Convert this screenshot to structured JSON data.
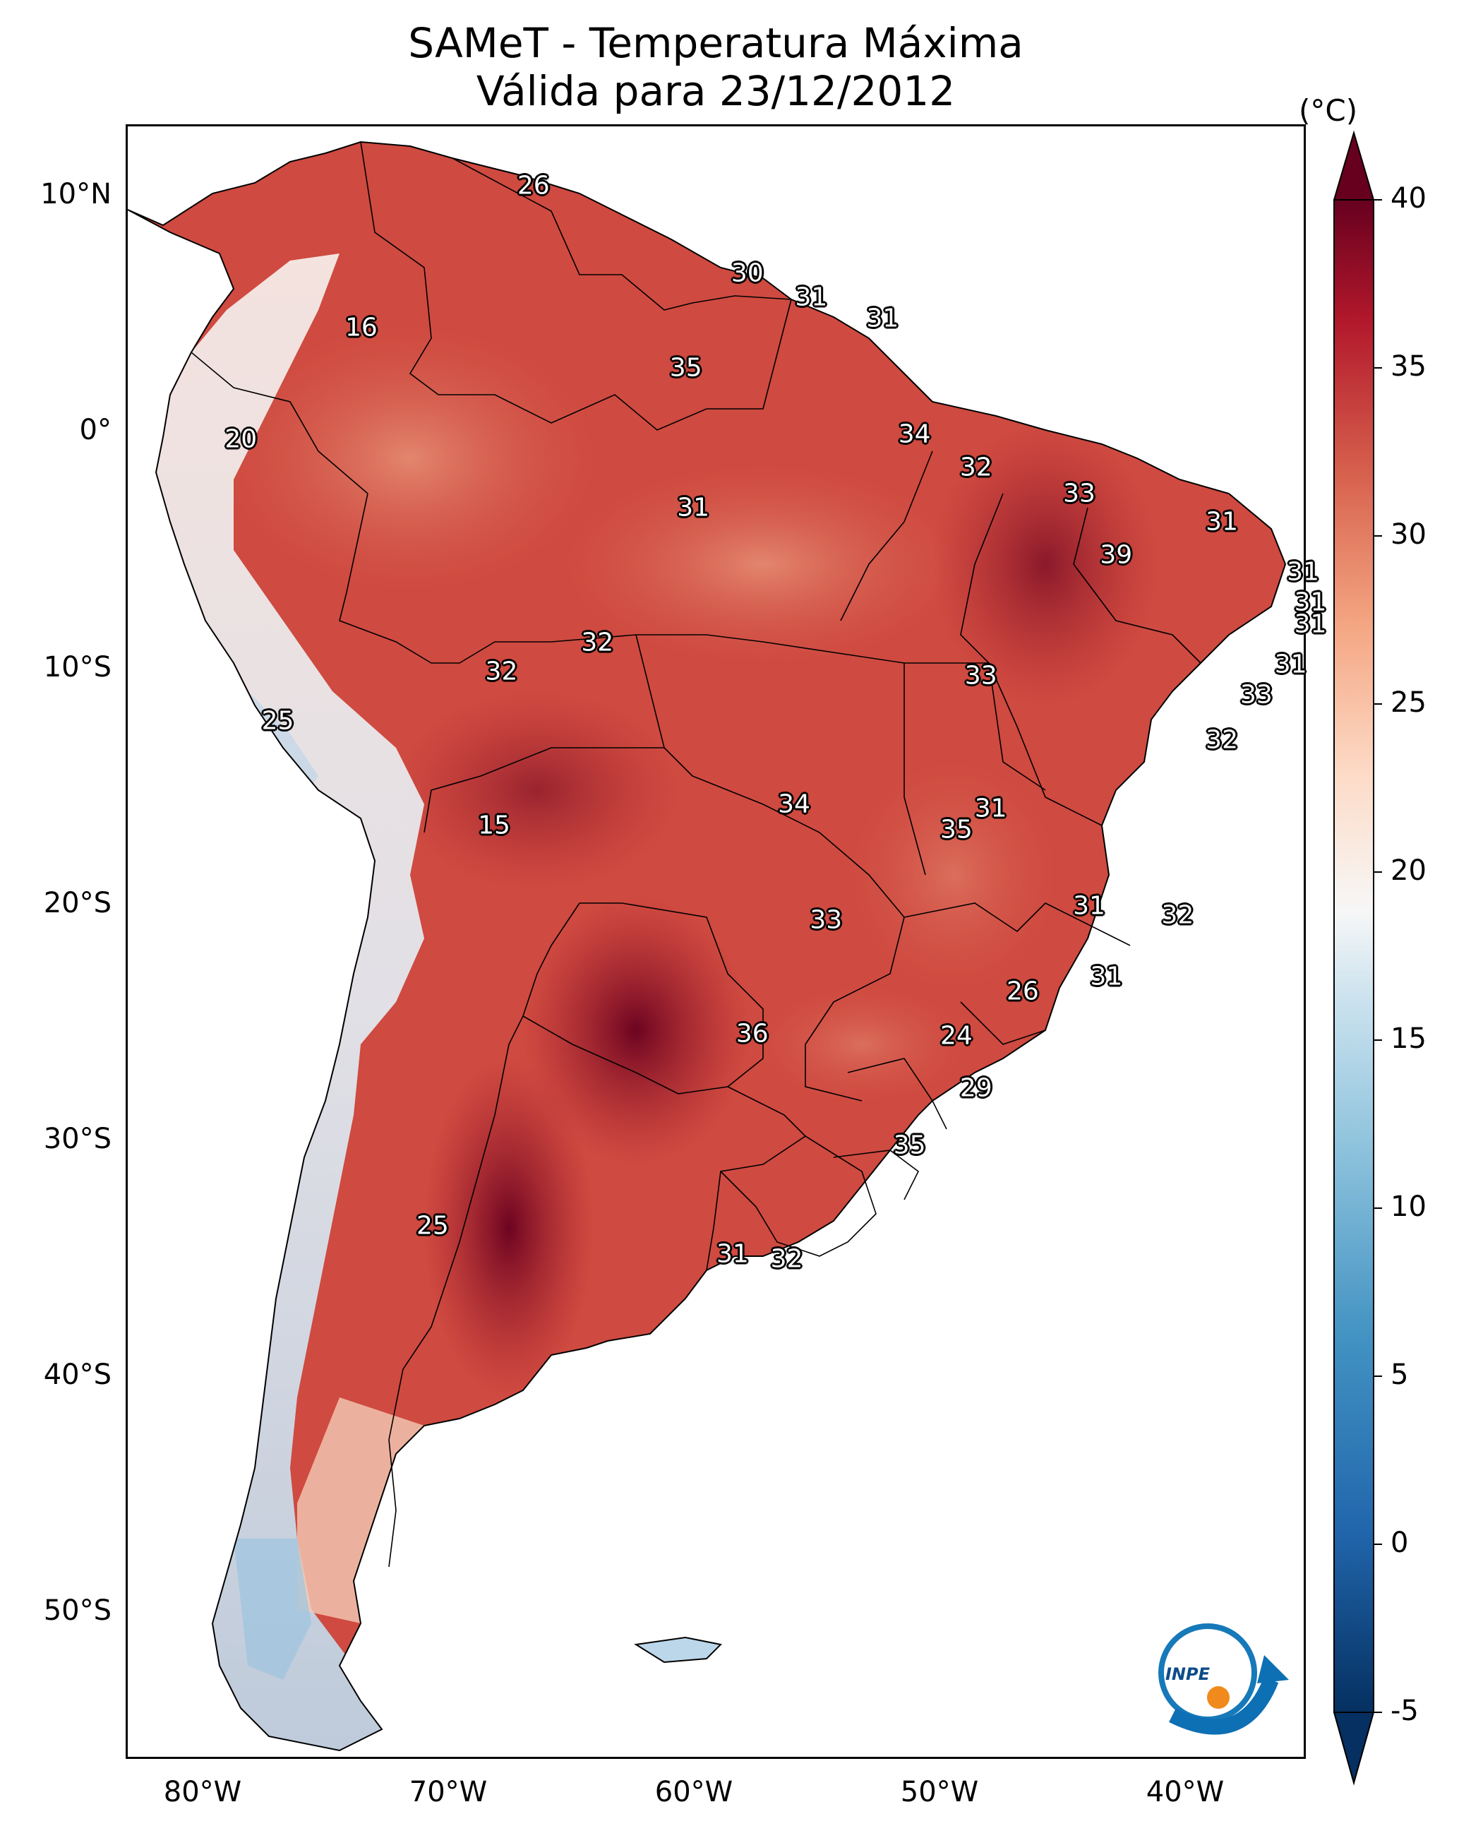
{
  "title_line1": "SAMeT - Temperatura Máxima",
  "title_line2": "Válida para 23/12/2012",
  "colorbar": {
    "unit": "(°C)",
    "min": -5,
    "max": 40,
    "ticks": [
      "40",
      "35",
      "30",
      "25",
      "20",
      "15",
      "10",
      "5",
      "0",
      "-5"
    ],
    "colormap": "RdBu_r",
    "extend": "both"
  },
  "axes": {
    "lat_labels": [
      "10°N",
      "0°",
      "10°S",
      "20°S",
      "30°S",
      "40°S",
      "50°S"
    ],
    "lon_labels": [
      "80°W",
      "70°W",
      "60°W",
      "50°W",
      "40°W"
    ],
    "lon_range": [
      -83,
      -35
    ],
    "lat_range": [
      -56,
      13
    ]
  },
  "stations": [
    {
      "value": "26",
      "lon": -66.5,
      "lat": 10.5
    },
    {
      "value": "16",
      "lon": -73.5,
      "lat": 4.5
    },
    {
      "value": "30",
      "lon": -57.8,
      "lat": 6.8
    },
    {
      "value": "31",
      "lon": -55.2,
      "lat": 5.8
    },
    {
      "value": "31",
      "lon": -52.3,
      "lat": 4.9
    },
    {
      "value": "35",
      "lon": -60.3,
      "lat": 2.8
    },
    {
      "value": "20",
      "lon": -78.4,
      "lat": -0.2
    },
    {
      "value": "34",
      "lon": -51.0,
      "lat": 0.0
    },
    {
      "value": "32",
      "lon": -48.5,
      "lat": -1.4
    },
    {
      "value": "31",
      "lon": -60.0,
      "lat": -3.1
    },
    {
      "value": "33",
      "lon": -44.3,
      "lat": -2.5
    },
    {
      "value": "31",
      "lon": -38.5,
      "lat": -3.7
    },
    {
      "value": "39",
      "lon": -42.8,
      "lat": -5.1
    },
    {
      "value": "31",
      "lon": -35.2,
      "lat": -5.8
    },
    {
      "value": "31",
      "lon": -34.9,
      "lat": -7.1
    },
    {
      "value": "31",
      "lon": -34.9,
      "lat": -8.0
    },
    {
      "value": "32",
      "lon": -63.9,
      "lat": -8.8
    },
    {
      "value": "32",
      "lon": -67.8,
      "lat": -10.0
    },
    {
      "value": "33",
      "lon": -48.3,
      "lat": -10.2
    },
    {
      "value": "31",
      "lon": -35.7,
      "lat": -9.7
    },
    {
      "value": "33",
      "lon": -37.1,
      "lat": -11.0
    },
    {
      "value": "25",
      "lon": -76.9,
      "lat": -12.1
    },
    {
      "value": "32",
      "lon": -38.5,
      "lat": -12.9
    },
    {
      "value": "34",
      "lon": -55.9,
      "lat": -15.6
    },
    {
      "value": "31",
      "lon": -47.9,
      "lat": -15.8
    },
    {
      "value": "35",
      "lon": -49.3,
      "lat": -16.7
    },
    {
      "value": "15",
      "lon": -68.1,
      "lat": -16.5
    },
    {
      "value": "33",
      "lon": -54.6,
      "lat": -20.5
    },
    {
      "value": "31",
      "lon": -43.9,
      "lat": -19.9
    },
    {
      "value": "32",
      "lon": -40.3,
      "lat": -20.3
    },
    {
      "value": "31",
      "lon": -43.2,
      "lat": -22.9
    },
    {
      "value": "26",
      "lon": -46.6,
      "lat": -23.5
    },
    {
      "value": "36",
      "lon": -57.6,
      "lat": -25.3
    },
    {
      "value": "24",
      "lon": -49.3,
      "lat": -25.4
    },
    {
      "value": "29",
      "lon": -48.5,
      "lat": -27.6
    },
    {
      "value": "35",
      "lon": -51.2,
      "lat": -30.0
    },
    {
      "value": "25",
      "lon": -70.6,
      "lat": -33.4
    },
    {
      "value": "31",
      "lon": -58.4,
      "lat": -34.6
    },
    {
      "value": "32",
      "lon": -56.2,
      "lat": -34.8
    }
  ]
}
